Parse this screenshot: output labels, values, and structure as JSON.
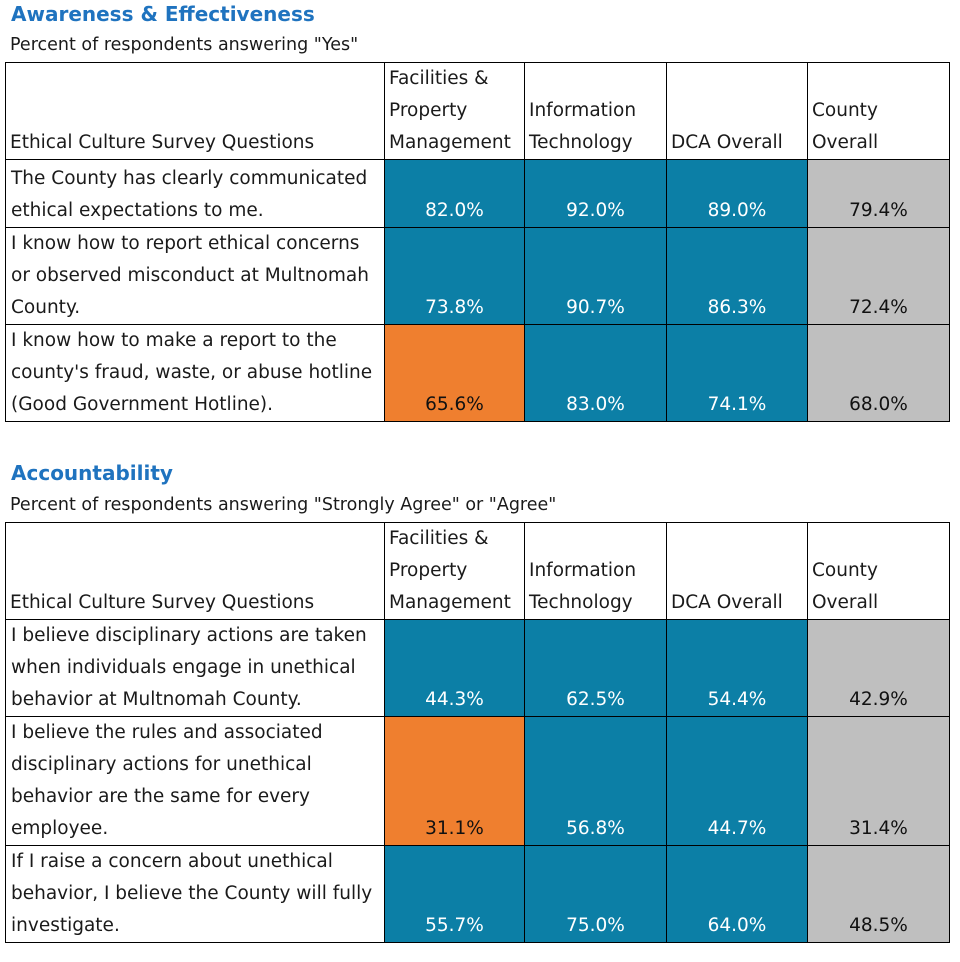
{
  "colors": {
    "high": "#0c7fa6",
    "low": "#ef7f2f",
    "county": "#bfbfbf",
    "title": "#1f73bf"
  },
  "chart_data": [
    {
      "type": "table",
      "title": "Awareness & Effectiveness",
      "subtitle": "Percent of respondents answering \"Yes\"",
      "columns": [
        "Ethical Culture Survey Questions",
        "Facilities & Property Management",
        "Information Technology",
        "DCA Overall",
        "County Overall"
      ],
      "rows": [
        {
          "question": "The County has clearly communicated ethical expectations to me.",
          "values": [
            "82.0%",
            "92.0%",
            "89.0%",
            "79.4%"
          ],
          "fills": [
            "high",
            "high",
            "high",
            "county"
          ]
        },
        {
          "question": "I know how to report ethical concerns or observed misconduct at Multnomah County.",
          "values": [
            "73.8%",
            "90.7%",
            "86.3%",
            "72.4%"
          ],
          "fills": [
            "high",
            "high",
            "high",
            "county"
          ]
        },
        {
          "question": "I know how to make a report to the county's fraud, waste, or abuse hotline (Good Government Hotline).",
          "values": [
            "65.6%",
            "83.0%",
            "74.1%",
            "68.0%"
          ],
          "fills": [
            "low",
            "high",
            "high",
            "county"
          ]
        }
      ]
    },
    {
      "type": "table",
      "title": "Accountability",
      "subtitle": "Percent of respondents answering \"Strongly Agree\" or \"Agree\"",
      "columns": [
        "Ethical Culture Survey Questions",
        "Facilities & Property Management",
        "Information Technology",
        "DCA Overall",
        "County Overall"
      ],
      "rows": [
        {
          "question": "I believe disciplinary actions are taken when individuals engage in unethical behavior at Multnomah County.",
          "values": [
            "44.3%",
            "62.5%",
            "54.4%",
            "42.9%"
          ],
          "fills": [
            "high",
            "high",
            "high",
            "county"
          ]
        },
        {
          "question": "I believe the rules and associated disciplinary actions for unethical behavior are the same for every employee.",
          "values": [
            "31.1%",
            "56.8%",
            "44.7%",
            "31.4%"
          ],
          "fills": [
            "low",
            "high",
            "high",
            "county"
          ]
        },
        {
          "question": "If I raise a concern about unethical behavior, I believe the County will fully investigate.",
          "values": [
            "55.7%",
            "75.0%",
            "64.0%",
            "48.5%"
          ],
          "fills": [
            "high",
            "high",
            "high",
            "county"
          ]
        }
      ]
    }
  ]
}
